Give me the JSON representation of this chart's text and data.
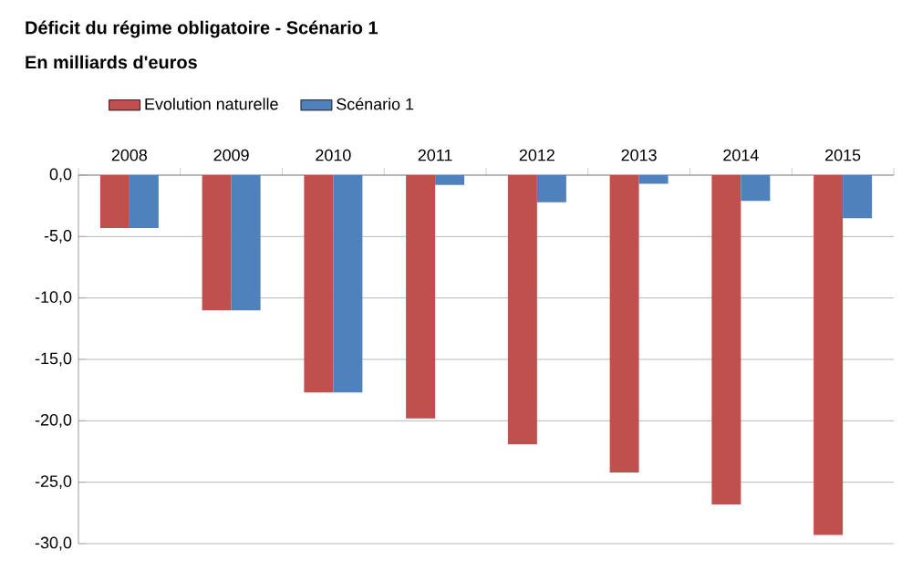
{
  "chart_data": {
    "type": "bar",
    "title": "Déficit du régime obligatoire - Scénario 1",
    "subtitle": "En milliards d'euros",
    "categories": [
      "2008",
      "2009",
      "2010",
      "2011",
      "2012",
      "2013",
      "2014",
      "2015"
    ],
    "series": [
      {
        "name": "Evolution naturelle",
        "color": "#c0504d",
        "values": [
          -4.3,
          -11.0,
          -17.7,
          -19.8,
          -21.9,
          -24.2,
          -26.8,
          -29.3
        ]
      },
      {
        "name": "Scénario 1",
        "color": "#4f81bd",
        "values": [
          -4.3,
          -11.0,
          -17.7,
          -0.8,
          -2.2,
          -0.7,
          -2.1,
          -3.5
        ]
      }
    ],
    "ylim": [
      -30,
      0
    ],
    "yticks": [
      {
        "value": -30,
        "label": "-30,0"
      },
      {
        "value": -25,
        "label": "-25,0"
      },
      {
        "value": -20,
        "label": "-20,0"
      },
      {
        "value": -15,
        "label": "-15,0"
      },
      {
        "value": -10,
        "label": "-10,0"
      },
      {
        "value": -5,
        "label": "-5,0"
      },
      {
        "value": 0,
        "label": "0,0"
      }
    ],
    "grid": "y",
    "legend": "top left"
  }
}
